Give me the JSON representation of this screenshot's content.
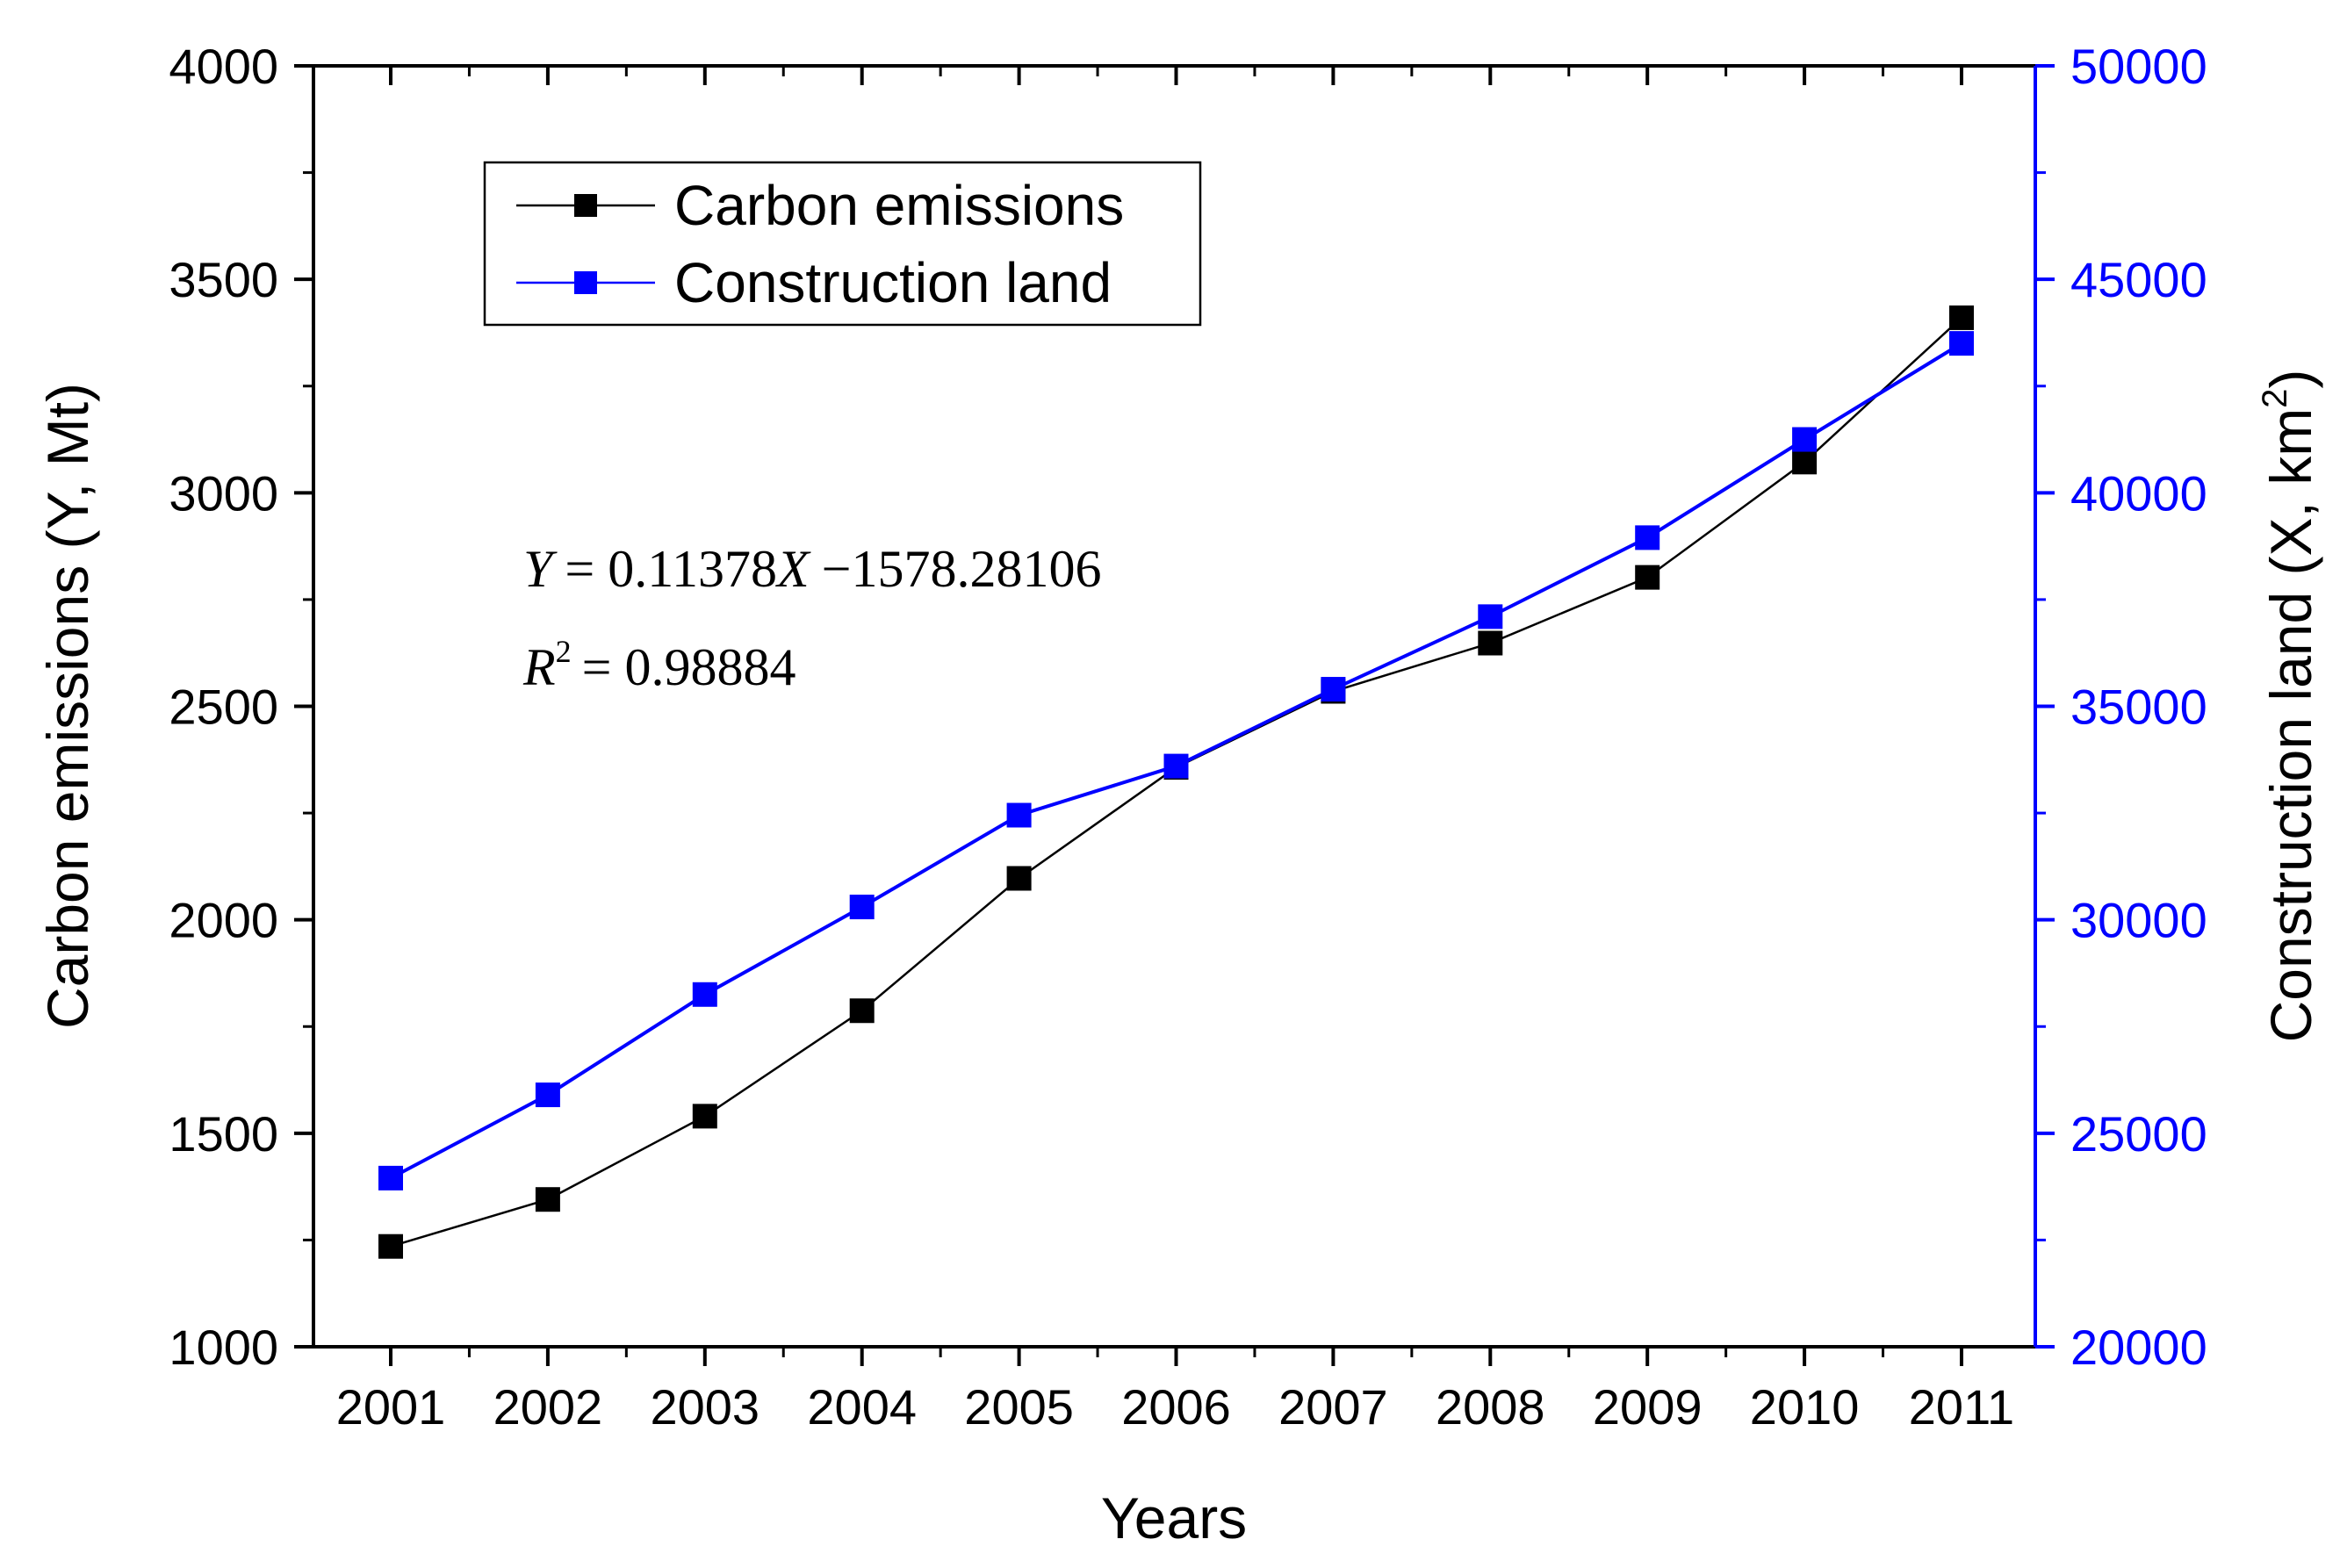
{
  "chart_data": {
    "type": "line",
    "x": [
      "2001",
      "2002",
      "2003",
      "2004",
      "2005",
      "2006",
      "2007",
      "2008",
      "2009",
      "2010",
      "2011"
    ],
    "xlabel": "Years",
    "ylabel": "Carbon emissions (Y, Mt)",
    "y2label_main": "Construction land (X, km",
    "y2label_sup": "2",
    "y2label_close": ")",
    "ylim": [
      1000,
      4000
    ],
    "y2lim": [
      20000,
      50000
    ],
    "yticks": [
      "1000",
      "1500",
      "2000",
      "2500",
      "3000",
      "3500",
      "4000"
    ],
    "y2ticks": [
      "20000",
      "25000",
      "30000",
      "35000",
      "40000",
      "45000",
      "50000"
    ],
    "series": [
      {
        "name": "Carbon emissions",
        "axis": "left",
        "color": "#000000",
        "values": [
          1235,
          1345,
          1540,
          1787,
          2097,
          2357,
          2535,
          2648,
          2802,
          3072,
          3410
        ]
      },
      {
        "name": "Construction land",
        "axis": "right",
        "color": "#0000ff",
        "values": [
          23950,
          25900,
          28250,
          30300,
          32450,
          33600,
          35400,
          37100,
          38950,
          41250,
          43500
        ]
      }
    ],
    "legend": [
      "Carbon emissions",
      "Construction land"
    ],
    "legend_position": "top-left",
    "equation": {
      "y": "Y",
      "eq1": "= 0.11378",
      "x": "X",
      "rest": "−1578.28106",
      "r": "R",
      "r_sup": "2",
      "r_eq": "= 0.98884"
    }
  }
}
